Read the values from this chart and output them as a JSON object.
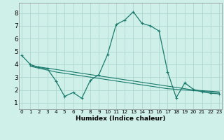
{
  "xlabel": "Humidex (Indice chaleur)",
  "background_color": "#cef0e8",
  "grid_color": "#b0d8d0",
  "line_color": "#1a7a6e",
  "x": [
    0,
    1,
    2,
    3,
    4,
    5,
    6,
    7,
    8,
    9,
    10,
    11,
    12,
    13,
    14,
    15,
    16,
    17,
    18,
    19,
    20,
    21,
    22,
    23
  ],
  "y_main": [
    4.7,
    4.0,
    3.75,
    3.65,
    2.7,
    1.5,
    1.8,
    1.35,
    2.75,
    3.2,
    4.75,
    7.1,
    7.45,
    8.1,
    7.2,
    7.0,
    6.6,
    3.4,
    1.4,
    2.55,
    2.05,
    1.85,
    1.75,
    1.7
  ],
  "y_trend1": [
    4.0,
    3.9,
    3.8,
    3.7,
    3.6,
    3.5,
    3.4,
    3.3,
    3.2,
    3.1,
    3.0,
    2.9,
    2.8,
    2.7,
    2.6,
    2.5,
    2.4,
    2.3,
    2.2,
    2.1,
    2.0,
    1.95,
    1.9,
    1.85
  ],
  "y_trend2": [
    4.0,
    3.85,
    3.7,
    3.55,
    3.4,
    3.3,
    3.2,
    3.1,
    3.0,
    2.9,
    2.8,
    2.7,
    2.6,
    2.5,
    2.4,
    2.3,
    2.2,
    2.1,
    2.05,
    2.0,
    1.95,
    1.9,
    1.85,
    1.8
  ],
  "ylim": [
    0.5,
    8.8
  ],
  "xlim": [
    -0.3,
    23.3
  ],
  "yticks": [
    1,
    2,
    3,
    4,
    5,
    6,
    7,
    8
  ],
  "xticks": [
    0,
    1,
    2,
    3,
    4,
    5,
    6,
    7,
    8,
    9,
    10,
    11,
    12,
    13,
    14,
    15,
    16,
    17,
    18,
    19,
    20,
    21,
    22,
    23
  ]
}
